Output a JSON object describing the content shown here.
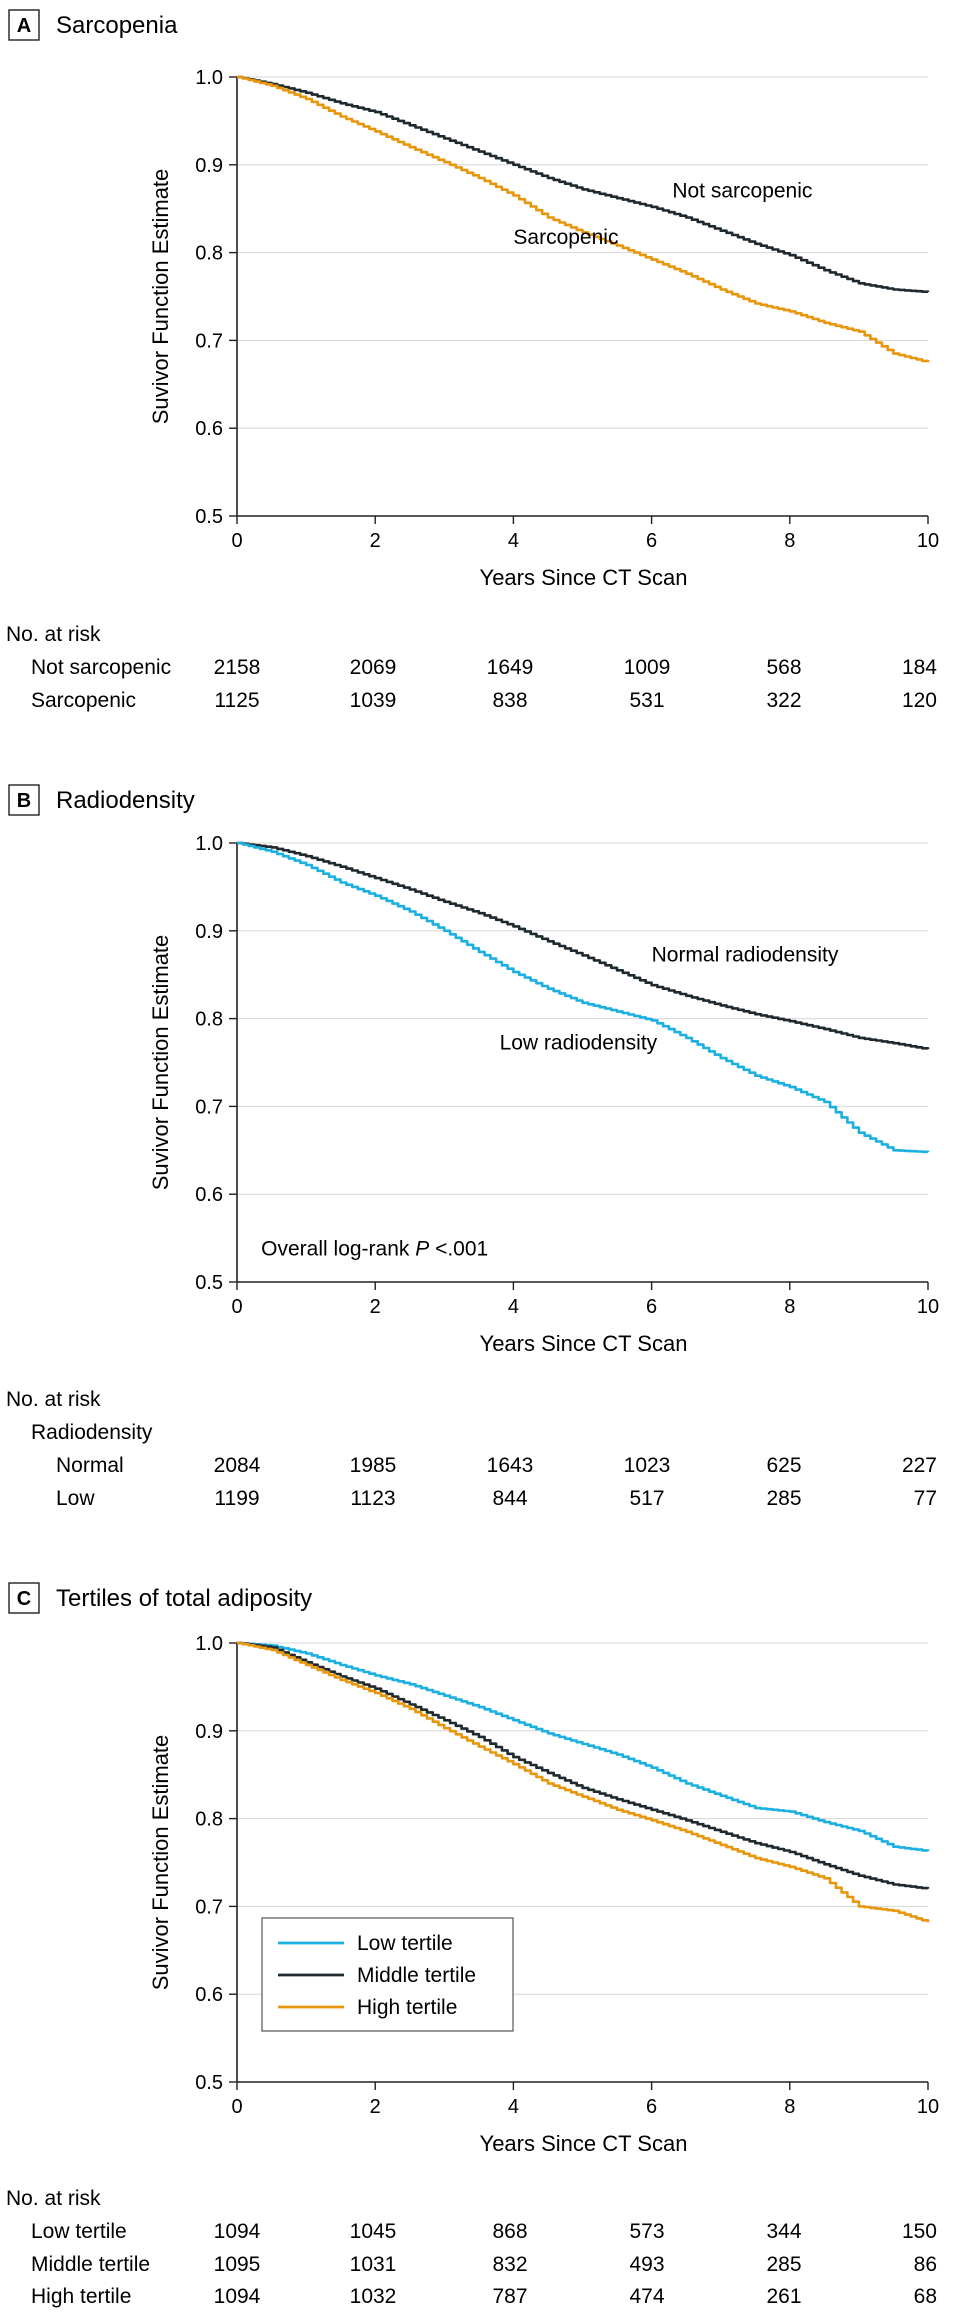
{
  "chart_data": [
    {
      "type": "line",
      "panel_letter": "A",
      "panel_title": "Sarcopenia",
      "xlabel": "Years Since CT Scan",
      "ylabel": "Suvivor Function Estimate",
      "xlim": [
        0,
        10
      ],
      "ylim": [
        0.5,
        1.0
      ],
      "xticks": [
        "0",
        "2",
        "4",
        "6",
        "8",
        "10"
      ],
      "yticks": [
        "0.5",
        "0.6",
        "0.7",
        "0.8",
        "0.9",
        "1.0"
      ],
      "series": [
        {
          "name": "Not sarcopenic",
          "color": "#1e2a2f",
          "x": [
            0,
            0.5,
            1,
            1.5,
            2,
            2.5,
            3,
            3.5,
            4,
            4.5,
            5,
            5.5,
            6,
            6.5,
            7,
            7.5,
            8,
            8.5,
            9,
            9.5,
            10
          ],
          "y": [
            1.0,
            0.992,
            0.982,
            0.97,
            0.96,
            0.945,
            0.93,
            0.915,
            0.9,
            0.885,
            0.872,
            0.862,
            0.852,
            0.84,
            0.825,
            0.81,
            0.797,
            0.78,
            0.765,
            0.758,
            0.755
          ]
        },
        {
          "name": "Sarcopenic",
          "color": "#e8960c",
          "x": [
            0,
            0.5,
            1,
            1.5,
            2,
            2.5,
            3,
            3.5,
            4,
            4.5,
            5,
            5.5,
            6,
            6.5,
            7,
            7.5,
            8,
            8.5,
            9,
            9.5,
            10
          ],
          "y": [
            1.0,
            0.99,
            0.975,
            0.955,
            0.938,
            0.92,
            0.903,
            0.885,
            0.865,
            0.84,
            0.823,
            0.808,
            0.792,
            0.776,
            0.758,
            0.742,
            0.733,
            0.72,
            0.71,
            0.685,
            0.675
          ]
        }
      ],
      "annotations": [
        {
          "text": "Not sarcopenic",
          "x": 6.3,
          "y": 0.863
        },
        {
          "text": "Sarcopenic",
          "x": 4.0,
          "y": 0.81
        }
      ],
      "risk_table": {
        "heading": "No. at risk",
        "subheading": "",
        "rows": [
          {
            "label": "Not sarcopenic",
            "values": [
              "2158",
              "2069",
              "1649",
              "1009",
              "568",
              "184"
            ]
          },
          {
            "label": "Sarcopenic",
            "values": [
              "1125",
              "1039",
              "838",
              "531",
              "322",
              "120"
            ]
          }
        ]
      }
    },
    {
      "type": "line",
      "panel_letter": "B",
      "panel_title": "Radiodensity",
      "xlabel": "Years Since CT Scan",
      "ylabel": "Suvivor Function Estimate",
      "xlim": [
        0,
        10
      ],
      "ylim": [
        0.5,
        1.0
      ],
      "xticks": [
        "0",
        "2",
        "4",
        "6",
        "8",
        "10"
      ],
      "yticks": [
        "0.5",
        "0.6",
        "0.7",
        "0.8",
        "0.9",
        "1.0"
      ],
      "series": [
        {
          "name": "Normal radiodensity",
          "color": "#1e2a2f",
          "x": [
            0,
            0.5,
            1,
            1.5,
            2,
            2.5,
            3,
            3.5,
            4,
            4.5,
            5,
            5.5,
            6,
            6.5,
            7,
            7.5,
            8,
            8.5,
            9,
            9.5,
            10
          ],
          "y": [
            1.0,
            0.995,
            0.985,
            0.973,
            0.96,
            0.947,
            0.933,
            0.92,
            0.905,
            0.888,
            0.872,
            0.855,
            0.838,
            0.826,
            0.815,
            0.805,
            0.797,
            0.788,
            0.778,
            0.772,
            0.765
          ]
        },
        {
          "name": "Low radiodensity",
          "color": "#1bb0e0",
          "x": [
            0,
            0.5,
            1,
            1.5,
            2,
            2.5,
            3,
            3.5,
            4,
            4.5,
            5,
            5.5,
            6,
            6.5,
            7,
            7.5,
            8,
            8.5,
            9,
            9.5,
            10
          ],
          "y": [
            1.0,
            0.99,
            0.975,
            0.955,
            0.94,
            0.922,
            0.9,
            0.876,
            0.853,
            0.834,
            0.818,
            0.808,
            0.798,
            0.778,
            0.755,
            0.735,
            0.722,
            0.705,
            0.67,
            0.65,
            0.648
          ]
        }
      ],
      "annotations": [
        {
          "text": "Normal radiodensity",
          "x": 6.0,
          "y": 0.865
        },
        {
          "text": "Low radiodensity",
          "x": 3.8,
          "y": 0.765
        },
        {
          "text_prefix": "Overall log-rank ",
          "text_italic": "P",
          "text_suffix": " <.001",
          "x": 0.35,
          "y": 0.53
        }
      ],
      "risk_table": {
        "heading": "No. at risk",
        "subheading": "Radiodensity",
        "rows": [
          {
            "label": "Normal",
            "values": [
              "2084",
              "1985",
              "1643",
              "1023",
              "625",
              "227"
            ]
          },
          {
            "label": "Low",
            "values": [
              "1199",
              "1123",
              "844",
              "517",
              "285",
              "77"
            ]
          }
        ]
      }
    },
    {
      "type": "line",
      "panel_letter": "C",
      "panel_title": "Tertiles of total adiposity",
      "xlabel": "Years Since CT Scan",
      "ylabel": "Suvivor Function Estimate",
      "xlim": [
        0,
        10
      ],
      "ylim": [
        0.5,
        1.0
      ],
      "xticks": [
        "0",
        "2",
        "4",
        "6",
        "8",
        "10"
      ],
      "yticks": [
        "0.5",
        "0.6",
        "0.7",
        "0.8",
        "0.9",
        "1.0"
      ],
      "legend_position": "bottom-left",
      "series": [
        {
          "name": "Low tertile",
          "color": "#1bb0e0",
          "x": [
            0,
            0.5,
            1,
            1.5,
            2,
            2.5,
            3,
            3.5,
            4,
            4.5,
            5,
            5.5,
            6,
            6.5,
            7,
            7.5,
            8,
            8.5,
            9,
            9.5,
            10
          ],
          "y": [
            1.0,
            0.997,
            0.988,
            0.975,
            0.963,
            0.953,
            0.94,
            0.927,
            0.912,
            0.897,
            0.885,
            0.873,
            0.858,
            0.84,
            0.826,
            0.812,
            0.808,
            0.796,
            0.786,
            0.768,
            0.763
          ]
        },
        {
          "name": "Middle tertile",
          "color": "#1e2a2f",
          "x": [
            0,
            0.5,
            1,
            1.5,
            2,
            2.5,
            3,
            3.5,
            4,
            4.5,
            5,
            5.5,
            6,
            6.5,
            7,
            7.5,
            8,
            8.5,
            9,
            9.5,
            10
          ],
          "y": [
            1.0,
            0.995,
            0.978,
            0.962,
            0.948,
            0.93,
            0.912,
            0.893,
            0.87,
            0.852,
            0.835,
            0.822,
            0.81,
            0.798,
            0.785,
            0.772,
            0.762,
            0.748,
            0.735,
            0.725,
            0.72
          ]
        },
        {
          "name": "High tertile",
          "color": "#e8960c",
          "x": [
            0,
            0.5,
            1,
            1.5,
            2,
            2.5,
            3,
            3.5,
            4,
            4.5,
            5,
            5.5,
            6,
            6.5,
            7,
            7.5,
            8,
            8.5,
            9,
            9.5,
            10
          ],
          "y": [
            1.0,
            0.992,
            0.975,
            0.958,
            0.943,
            0.925,
            0.903,
            0.882,
            0.862,
            0.84,
            0.825,
            0.81,
            0.798,
            0.785,
            0.77,
            0.755,
            0.745,
            0.732,
            0.7,
            0.695,
            0.682
          ]
        }
      ],
      "annotations": [],
      "risk_table": {
        "heading": "No. at risk",
        "subheading": "",
        "rows": [
          {
            "label": "Low tertile",
            "values": [
              "1094",
              "1045",
              "868",
              "573",
              "344",
              "150"
            ]
          },
          {
            "label": "Middle tertile",
            "values": [
              "1095",
              "1031",
              "832",
              "493",
              "285",
              "86"
            ]
          },
          {
            "label": "High tertile",
            "values": [
              "1094",
              "1032",
              "787",
              "474",
              "261",
              "68"
            ]
          }
        ]
      }
    }
  ]
}
